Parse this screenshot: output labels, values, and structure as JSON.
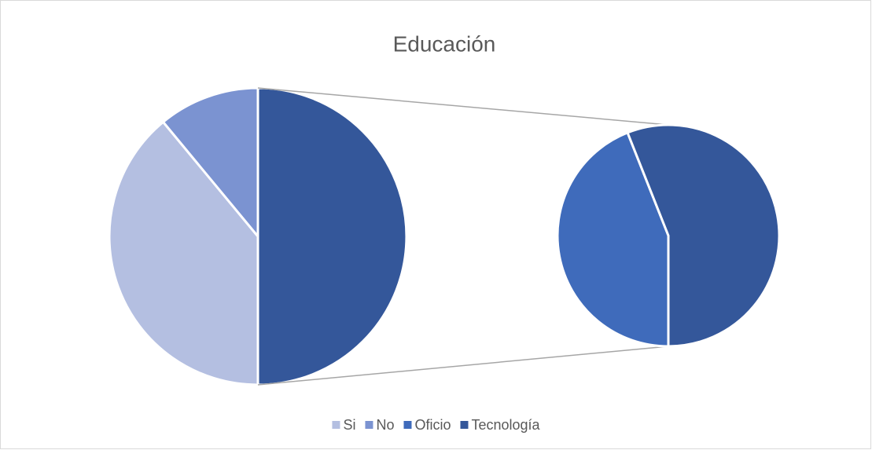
{
  "chart_data": {
    "type": "pie-of-pie",
    "title": "Educación",
    "categories": [
      "Si",
      "No",
      "Oficio",
      "Tecnología"
    ],
    "values": [
      39,
      11,
      22,
      28
    ],
    "colors": [
      "#b4bfe1",
      "#7b93d1",
      "#3f6bbb",
      "#34579a"
    ],
    "second_plot_count": 2,
    "legend": "bottom"
  }
}
